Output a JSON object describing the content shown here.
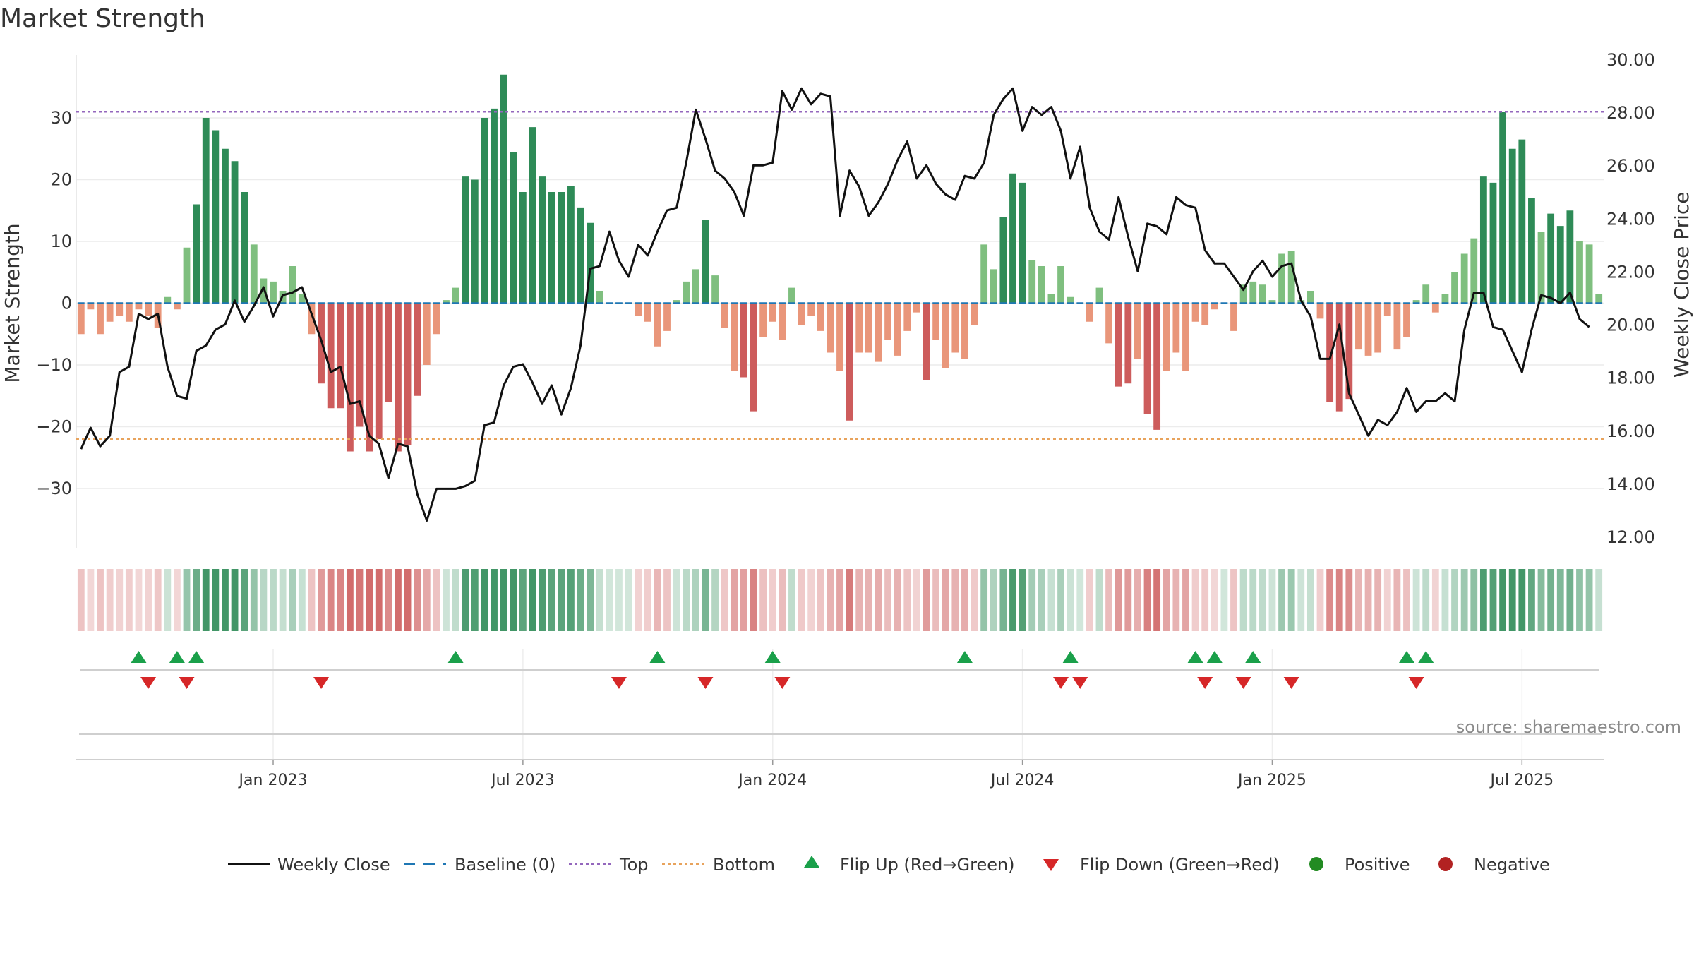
{
  "title": "Market Strength",
  "source": "source: sharemaestro.com",
  "colors": {
    "strong_green": "#2e8b57",
    "light_green": "#7fbf7f",
    "strong_red": "#cd5c5c",
    "light_red": "#e9967a",
    "baseline": "#1f77b4",
    "top": "#9467bd",
    "bottom": "#e8a35c",
    "line": "#111111",
    "flip_up": "#1aa04a",
    "flip_down": "#d62728",
    "positive": "#228b22",
    "negative": "#b22222"
  },
  "chart_data": {
    "type": "bar+line",
    "left_axis": {
      "label": "Market Strength",
      "ticks": [
        30,
        20,
        10,
        0,
        -10,
        -20,
        -30
      ],
      "ylim": [
        -39.5,
        40
      ]
    },
    "right_axis": {
      "label": "Weekly Close Price",
      "ticks": [
        "30.00",
        "28.00",
        "26.00",
        "24.00",
        "22.00",
        "20.00",
        "18.00",
        "16.00",
        "14.00",
        "12.00"
      ],
      "ylim": [
        12,
        30
      ]
    },
    "x_ticks": [
      "Jan 2023",
      "Jul 2023",
      "Jan 2024",
      "Jul 2024",
      "Jan 2025",
      "Jul 2025"
    ],
    "top_level": 31,
    "bottom_level": -22,
    "strength": [
      -5,
      -1,
      -5,
      -3,
      -2,
      -3,
      -1,
      -2,
      -4,
      1,
      -1,
      9,
      16,
      30,
      28,
      25,
      23,
      18,
      9.5,
      4,
      3.5,
      2,
      6,
      1.5,
      -5,
      -13,
      -17,
      -17,
      -24,
      -20,
      -24,
      -22,
      -16,
      -24,
      -23,
      -15,
      -10,
      -5,
      0.5,
      2.5,
      20.5,
      20,
      30,
      31.5,
      37,
      24.5,
      18,
      28.5,
      20.5,
      18,
      18,
      19,
      15.5,
      13,
      2,
      0,
      0,
      0,
      -2,
      -3,
      -7,
      -4.5,
      0.5,
      3.5,
      5.5,
      13.5,
      4.5,
      -4,
      -11,
      -12,
      -17.5,
      -5.5,
      -3,
      -6,
      2.5,
      -3.5,
      -2,
      -4.5,
      -8,
      -11,
      -19,
      -8,
      -8,
      -9.5,
      -6,
      -8.5,
      -4.5,
      -1.5,
      -12.5,
      -6,
      -10.5,
      -8,
      -9,
      -3.5,
      9.5,
      5.5,
      14,
      21,
      19.5,
      7,
      6,
      1.5,
      6,
      1,
      0,
      -3,
      2.5,
      -6.5,
      -13.5,
      -13,
      -9,
      -18,
      -20.5,
      -11,
      -8,
      -11,
      -3,
      -3.5,
      -1,
      0,
      -4.5,
      3,
      3.5,
      3,
      0.5,
      8,
      8.5,
      0.5,
      2,
      -2.5,
      -16,
      -17.5,
      -15.5,
      -7.5,
      -8.5,
      -8,
      -2,
      -7.5,
      -5.5,
      0.5,
      3,
      -1.5,
      1.5,
      5,
      8,
      10.5,
      20.5,
      19.5,
      31,
      25,
      26.5,
      17,
      11.5,
      14.5,
      12.5,
      15,
      10,
      9.5,
      1.5
    ],
    "price": [
      15.3,
      16.1,
      15.4,
      15.8,
      18.2,
      18.4,
      20.4,
      20.2,
      20.4,
      18.4,
      17.3,
      17.2,
      19.0,
      19.2,
      19.8,
      20.0,
      20.9,
      20.1,
      20.7,
      21.4,
      20.3,
      21.1,
      21.2,
      21.4,
      20.4,
      19.4,
      18.2,
      18.4,
      17.0,
      17.1,
      15.8,
      15.5,
      14.2,
      15.5,
      15.4,
      13.6,
      12.6,
      13.8,
      13.8,
      13.8,
      13.9,
      14.1,
      16.2,
      16.3,
      17.7,
      18.4,
      18.5,
      17.8,
      17.0,
      17.7,
      16.6,
      17.6,
      19.2,
      22.1,
      22.2,
      23.5,
      22.4,
      21.8,
      23.0,
      22.6,
      23.5,
      24.3,
      24.4,
      26.1,
      28.1,
      27.0,
      25.8,
      25.5,
      25.0,
      24.1,
      26.0,
      26.0,
      26.1,
      28.8,
      28.1,
      28.9,
      28.3,
      28.7,
      28.6,
      24.1,
      25.8,
      25.2,
      24.1,
      24.6,
      25.3,
      26.2,
      26.9,
      25.5,
      26.0,
      25.3,
      24.9,
      24.7,
      25.6,
      25.5,
      26.1,
      27.9,
      28.5,
      28.9,
      27.3,
      28.2,
      27.9,
      28.2,
      27.3,
      25.5,
      26.7,
      24.4,
      23.5,
      23.2,
      24.8,
      23.3,
      22.0,
      23.8,
      23.7,
      23.4,
      24.8,
      24.5,
      24.4,
      22.8,
      22.3,
      22.3,
      21.8,
      21.3,
      22.0,
      22.4,
      21.8,
      22.2,
      22.3,
      20.9,
      20.3,
      18.7,
      18.7,
      20.0,
      17.4,
      16.6,
      15.8,
      16.4,
      16.2,
      16.7,
      17.6,
      16.7,
      17.1,
      17.1,
      17.4,
      17.1,
      19.8,
      21.2,
      21.2,
      19.9,
      19.8,
      19.0,
      18.2,
      19.8,
      21.1,
      21.0,
      20.8,
      21.2,
      20.2,
      19.9
    ],
    "flip_up_indices": [
      6,
      10,
      12,
      39,
      60,
      72,
      92,
      103,
      116,
      118,
      122,
      138,
      140
    ],
    "flip_down_indices": [
      7,
      11,
      25,
      56,
      65,
      73,
      102,
      104,
      117,
      121,
      126,
      139
    ],
    "legend": [
      "Weekly Close",
      "Baseline (0)",
      "Top",
      "Bottom",
      "Flip Up (Red→Green)",
      "Flip Down (Green→Red)",
      "Positive",
      "Negative"
    ]
  }
}
